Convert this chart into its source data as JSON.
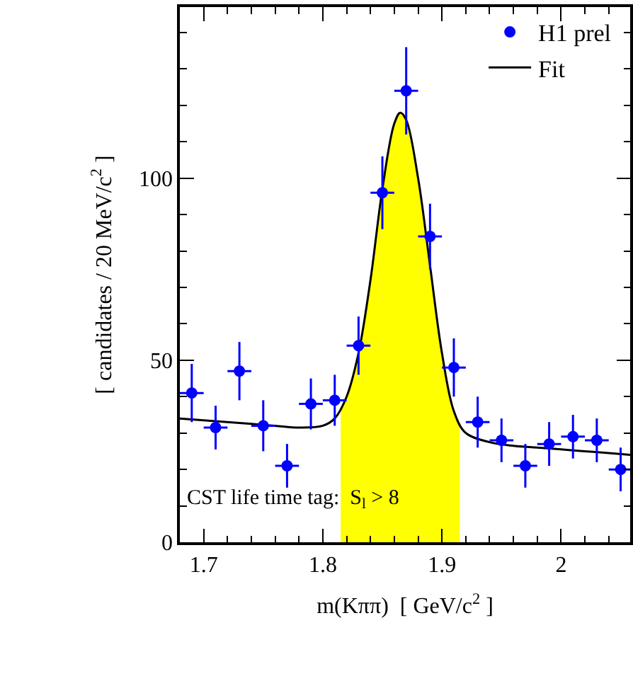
{
  "chart_data": {
    "type": "scatter",
    "xlabel": "m(Kππ)  [ GeV/c$^{2}$ ]",
    "ylabel": "[ candidates / 20 MeV/c$^{2}$ ]",
    "xlim": [
      1.68,
      2.058
    ],
    "xticks": [
      1.7,
      1.8,
      1.9,
      2
    ],
    "ylim": [
      0,
      147
    ],
    "yticks": [
      0,
      50,
      100
    ],
    "legend": "top right",
    "annotations": [
      "CST life time tag:  S$_{l}$ > 8"
    ],
    "series": [
      {
        "type": "area",
        "color": "#ffff00",
        "x": [
          1.815,
          1.82,
          1.83,
          1.84,
          1.85,
          1.86,
          1.865,
          1.87,
          1.88,
          1.89,
          1.9,
          1.91,
          1.915
        ],
        "values": [
          36,
          40,
          52,
          72,
          97,
          115,
          118,
          116,
          100,
          76,
          52,
          36,
          33
        ]
      },
      {
        "type": "line",
        "name": "Fit",
        "color": "#000000",
        "line_style": "solid",
        "x": [
          1.68,
          1.7,
          1.72,
          1.74,
          1.76,
          1.78,
          1.8,
          1.81,
          1.82,
          1.83,
          1.84,
          1.85,
          1.86,
          1.865,
          1.87,
          1.88,
          1.89,
          1.9,
          1.91,
          1.92,
          1.94,
          1.96,
          1.98,
          2.0,
          2.02,
          2.04,
          2.058
        ],
        "values": [
          34,
          33.5,
          33,
          32.5,
          32,
          31.5,
          32,
          34,
          40,
          52,
          72,
          97,
          115,
          118,
          116,
          100,
          76,
          52,
          36,
          30,
          27.5,
          26.5,
          26,
          25.5,
          25,
          24.5,
          24
        ]
      },
      {
        "name": "H1 prel",
        "color": "#0000ff",
        "marker": "circle",
        "x": [
          1.69,
          1.71,
          1.73,
          1.75,
          1.77,
          1.79,
          1.81,
          1.83,
          1.85,
          1.87,
          1.89,
          1.91,
          1.93,
          1.95,
          1.97,
          1.99,
          2.01,
          2.03,
          2.05
        ],
        "values": [
          41,
          31.5,
          47,
          32,
          21,
          38,
          39,
          54,
          96,
          124,
          84,
          48,
          33,
          28,
          21,
          27,
          29,
          28,
          20
        ],
        "errors": [
          8,
          6,
          8,
          7,
          6,
          7,
          7,
          8,
          10,
          12,
          9,
          8,
          7,
          6,
          6,
          6,
          6,
          6,
          6
        ],
        "xerrors": [
          0.01,
          0.01,
          0.01,
          0.01,
          0.01,
          0.01,
          0.01,
          0.01,
          0.01,
          0.01,
          0.01,
          0.01,
          0.01,
          0.01,
          0.01,
          0.01,
          0.01,
          0.01,
          0.01
        ]
      }
    ]
  }
}
